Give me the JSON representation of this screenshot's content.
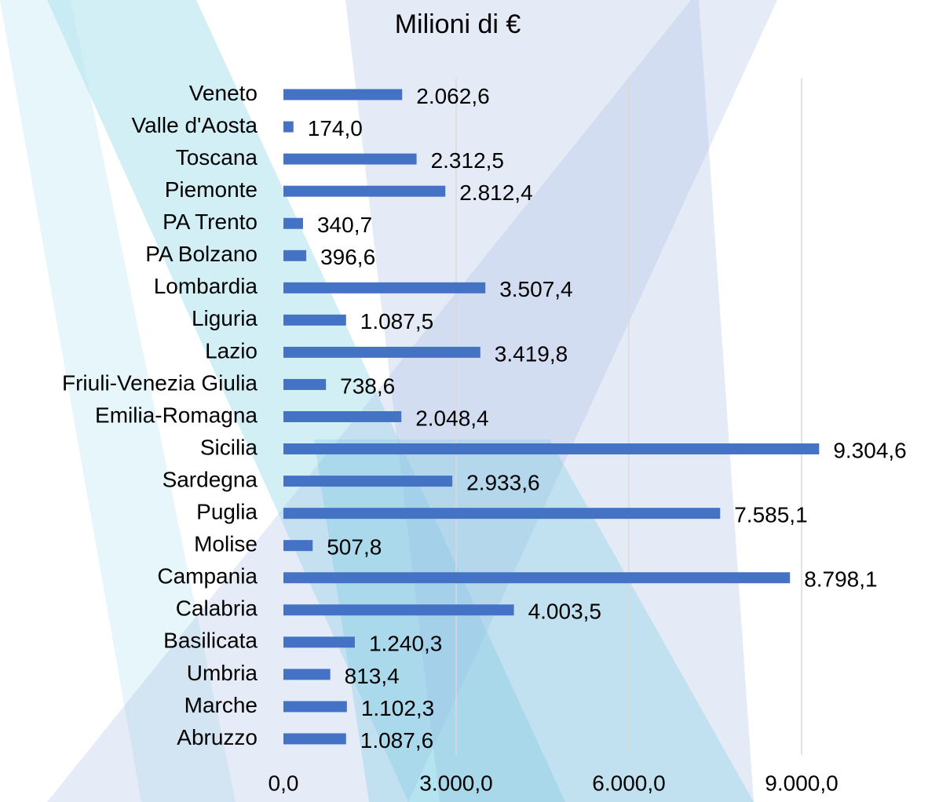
{
  "chart_data": {
    "type": "bar",
    "orientation": "horizontal",
    "title": "Milioni di €",
    "categories": [
      "Veneto",
      "Valle d'Aosta",
      "Toscana",
      "Piemonte",
      "PA Trento",
      "PA Bolzano",
      "Lombardia",
      "Liguria",
      "Lazio",
      "Friuli-Venezia Giulia",
      "Emilia-Romagna",
      "Sicilia",
      "Sardegna",
      "Puglia",
      "Molise",
      "Campania",
      "Calabria",
      "Basilicata",
      "Umbria",
      "Marche",
      "Abruzzo"
    ],
    "values": [
      2062.6,
      174.0,
      2312.5,
      2812.4,
      340.7,
      396.6,
      3507.4,
      1087.5,
      3419.8,
      738.6,
      2048.4,
      9304.6,
      2933.6,
      7585.1,
      507.8,
      8798.1,
      4003.5,
      1240.3,
      813.4,
      1102.3,
      1087.6
    ],
    "value_labels": [
      "2.062,6",
      "174,0",
      "2.312,5",
      "2.812,4",
      "340,7",
      "396,6",
      "3.507,4",
      "1.087,5",
      "3.419,8",
      "738,6",
      "2.048,4",
      "9.304,6",
      "2.933,6",
      "7.585,1",
      "507,8",
      "8.798,1",
      "4.003,5",
      "1.240,3",
      "813,4",
      "1.102,3",
      "1.087,6"
    ],
    "color": "#4472c4",
    "xlim": [
      0,
      9000
    ],
    "xticks": [
      {
        "value": 0,
        "label": "0,0"
      },
      {
        "value": 3000,
        "label": "3.000,0"
      },
      {
        "value": 6000,
        "label": "6.000,0"
      },
      {
        "value": 9000,
        "label": "9.000,0"
      }
    ],
    "grid": true
  }
}
